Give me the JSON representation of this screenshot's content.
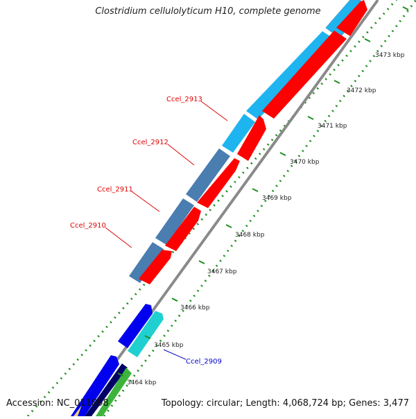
{
  "title": "Clostridium cellulolyticum H10, complete genome",
  "accession_text": "Accession: NC_011898",
  "summary_text": "Topology: circular; Length: 4,068,724 bp; Genes: 3,477",
  "colors": {
    "forward_strand_light": "#1eb4f0",
    "forward_strand_steel": "#4a7db0",
    "reverse_strand": "#ff0000",
    "blue_genes": "#0000ee",
    "cyan_gene": "#20d0d0",
    "navy_gene": "#000066",
    "green_gene": "#3cb43c",
    "backbone": "#888888",
    "dots": "#1e8c1e",
    "red_labels": "#dd0000",
    "blue_labels": "#0000cc"
  },
  "ticks": [
    "3464 kbp",
    "3465 kbp",
    "3466 kbp",
    "3467 kbp",
    "3468 kbp",
    "3469 kbp",
    "3470 kbp",
    "3471 kbp",
    "3472 kbp",
    "3473 kbp"
  ],
  "gene_labels": [
    {
      "name": "Ccel_2913",
      "color": "red"
    },
    {
      "name": "Ccel_2912",
      "color": "red"
    },
    {
      "name": "Ccel_2911",
      "color": "red"
    },
    {
      "name": "Ccel_2910",
      "color": "red"
    },
    {
      "name": "Ccel_2909",
      "color": "blue"
    }
  ]
}
